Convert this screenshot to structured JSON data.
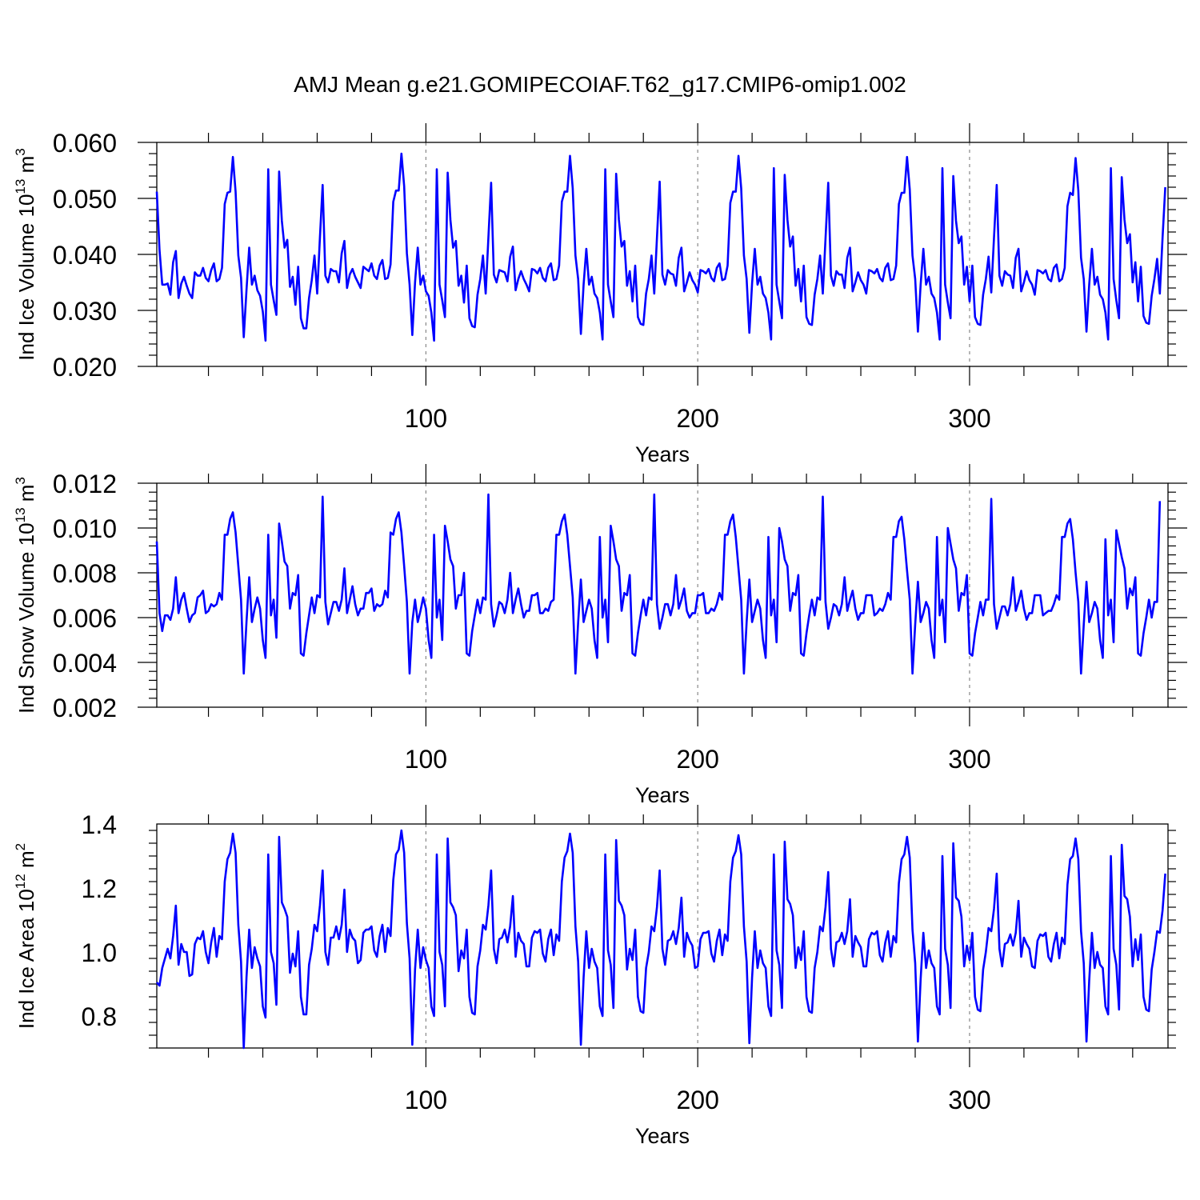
{
  "title": "AMJ Mean g.e21.GOMIPECOIAF.T62_g17.CMIP6-omip1.002",
  "colors": {
    "line": "#0000ff",
    "axis": "#000000",
    "refline": "#888888"
  },
  "chart_data": [
    {
      "type": "line",
      "ylabel_text": "Ind Ice Volume 10",
      "ylabel_exp": "13",
      "ylabel_unit": " m",
      "ylabel_unit_exp": "3",
      "xlabel": "Years",
      "xlim": [
        1,
        373
      ],
      "ylim": [
        0.02,
        0.06
      ],
      "xticks": [
        100,
        200,
        300
      ],
      "xtick_labels": [
        "100",
        "200",
        "300"
      ],
      "yticks": [
        0.02,
        0.03,
        0.04,
        0.05,
        0.06
      ],
      "ytick_labels": [
        "0.020",
        "0.030",
        "0.040",
        "0.050",
        "0.060"
      ],
      "ref_lines_x": [
        100,
        200,
        300
      ],
      "x_start": 1,
      "y": [
        0.0512,
        0.0408,
        0.0346,
        0.0346,
        0.0348,
        0.0328,
        0.0386,
        0.0406,
        0.0322,
        0.0348,
        0.036,
        0.0344,
        0.033,
        0.0322,
        0.0368,
        0.0362,
        0.0362,
        0.0376,
        0.0358,
        0.0352,
        0.0372,
        0.0384,
        0.0352,
        0.0356,
        0.0376,
        0.049,
        0.051,
        0.0512,
        0.0574,
        0.0512,
        0.0398,
        0.0358,
        0.0252,
        0.0336,
        0.0412,
        0.0346,
        0.0362,
        0.0336,
        0.0326,
        0.0298,
        0.0246,
        0.0552,
        0.0346,
        0.0318,
        0.0292,
        0.0548,
        0.046,
        0.0412,
        0.0426,
        0.0342,
        0.036,
        0.031,
        0.0378,
        0.0286,
        0.0268,
        0.0268,
        0.0322,
        0.0354,
        0.0398,
        0.033,
        0.043,
        0.0524,
        0.0362,
        0.035,
        0.0374,
        0.037,
        0.037,
        0.035,
        0.0402,
        0.0424,
        0.034,
        0.0364,
        0.0374,
        0.036,
        0.035,
        0.034,
        0.0378,
        0.0374,
        0.037,
        0.0384,
        0.0362,
        0.0356,
        0.038,
        0.039,
        0.0356,
        0.0358,
        0.0382,
        0.0494,
        0.0514,
        0.0514,
        0.058,
        0.0522,
        0.0402,
        0.0346,
        0.0256,
        0.035,
        0.0412,
        0.0346,
        0.0362,
        0.0334,
        0.0326,
        0.0296,
        0.0246,
        0.0552,
        0.0346,
        0.0318,
        0.0288,
        0.0546,
        0.0462,
        0.0412,
        0.0424,
        0.0344,
        0.0362,
        0.0314,
        0.038,
        0.0286,
        0.0272,
        0.027,
        0.0328,
        0.0356,
        0.0398,
        0.033,
        0.043,
        0.0528,
        0.0364,
        0.035,
        0.0372,
        0.037,
        0.0368,
        0.0352,
        0.0396,
        0.0414,
        0.0336,
        0.0356,
        0.037,
        0.0356,
        0.0346,
        0.0334,
        0.0374,
        0.0372,
        0.0366,
        0.0376,
        0.0358,
        0.0352,
        0.0376,
        0.0384,
        0.0354,
        0.0356,
        0.038,
        0.0494,
        0.0512,
        0.0512,
        0.0576,
        0.0518,
        0.0398,
        0.0356,
        0.0258,
        0.0346,
        0.041,
        0.0346,
        0.036,
        0.033,
        0.0322,
        0.0296,
        0.0248,
        0.0552,
        0.0346,
        0.0316,
        0.0288,
        0.0544,
        0.0462,
        0.0414,
        0.0424,
        0.0344,
        0.037,
        0.0316,
        0.038,
        0.0288,
        0.0276,
        0.0274,
        0.033,
        0.0356,
        0.0398,
        0.033,
        0.043,
        0.053,
        0.0364,
        0.0346,
        0.0372,
        0.0366,
        0.0364,
        0.0344,
        0.0394,
        0.0412,
        0.0334,
        0.035,
        0.0368,
        0.0354,
        0.0346,
        0.0332,
        0.0372,
        0.037,
        0.0366,
        0.0374,
        0.0358,
        0.0352,
        0.0376,
        0.0384,
        0.0354,
        0.0356,
        0.038,
        0.0492,
        0.0512,
        0.0512,
        0.0576,
        0.0518,
        0.0398,
        0.0356,
        0.026,
        0.0348,
        0.041,
        0.0346,
        0.036,
        0.033,
        0.0322,
        0.0296,
        0.0248,
        0.0554,
        0.0346,
        0.0316,
        0.0286,
        0.0542,
        0.0462,
        0.0414,
        0.0432,
        0.0344,
        0.0374,
        0.0316,
        0.038,
        0.0288,
        0.0276,
        0.0274,
        0.0328,
        0.0356,
        0.0398,
        0.033,
        0.0428,
        0.0528,
        0.0362,
        0.0344,
        0.037,
        0.0364,
        0.0364,
        0.034,
        0.0394,
        0.0412,
        0.0334,
        0.035,
        0.0368,
        0.0354,
        0.0346,
        0.033,
        0.0372,
        0.037,
        0.0366,
        0.0374,
        0.0358,
        0.0352,
        0.0376,
        0.0384,
        0.0354,
        0.0356,
        0.038,
        0.049,
        0.051,
        0.051,
        0.0574,
        0.0516,
        0.0398,
        0.0356,
        0.0262,
        0.0346,
        0.041,
        0.0346,
        0.036,
        0.033,
        0.0322,
        0.0296,
        0.0248,
        0.0554,
        0.0346,
        0.0314,
        0.0286,
        0.054,
        0.046,
        0.042,
        0.0432,
        0.0346,
        0.0378,
        0.0316,
        0.038,
        0.0288,
        0.0276,
        0.0274,
        0.0328,
        0.0356,
        0.0396,
        0.0332,
        0.043,
        0.0524,
        0.0362,
        0.0344,
        0.037,
        0.0364,
        0.0362,
        0.034,
        0.0394,
        0.041,
        0.0334,
        0.035,
        0.037,
        0.0354,
        0.0346,
        0.0328,
        0.0372,
        0.037,
        0.0366,
        0.0372,
        0.0356,
        0.0352,
        0.0376,
        0.0382,
        0.0352,
        0.0356,
        0.0376,
        0.0486,
        0.051,
        0.0506,
        0.0572,
        0.0514,
        0.0394,
        0.0356,
        0.0262,
        0.0346,
        0.041,
        0.0346,
        0.036,
        0.0328,
        0.032,
        0.0296,
        0.0248,
        0.0554,
        0.0356,
        0.0318,
        0.0286,
        0.0538,
        0.0462,
        0.042,
        0.0436,
        0.035,
        0.0386,
        0.0316,
        0.0378,
        0.029,
        0.0278,
        0.0276,
        0.0326,
        0.0356,
        0.0392,
        0.033,
        0.043,
        0.052
      ]
    },
    {
      "type": "line",
      "ylabel_text": "Ind Snow Volume 10",
      "ylabel_exp": "13",
      "ylabel_unit": " m",
      "ylabel_unit_exp": "3",
      "xlabel": "Years",
      "xlim": [
        1,
        373
      ],
      "ylim": [
        0.002,
        0.012
      ],
      "xticks": [
        100,
        200,
        300
      ],
      "xtick_labels": [
        "100",
        "200",
        "300"
      ],
      "yticks": [
        0.002,
        0.004,
        0.006,
        0.008,
        0.01,
        0.012
      ],
      "ytick_labels": [
        "0.002",
        "0.004",
        "0.006",
        "0.008",
        "0.010",
        "0.012"
      ],
      "ref_lines_x": [
        100,
        200,
        300
      ],
      "x_start": 1,
      "y": [
        0.0094,
        0.0062,
        0.0054,
        0.0061,
        0.0061,
        0.0059,
        0.0064,
        0.0078,
        0.0062,
        0.0068,
        0.0071,
        0.0064,
        0.0058,
        0.0061,
        0.0062,
        0.0069,
        0.007,
        0.0072,
        0.0062,
        0.0063,
        0.0066,
        0.0065,
        0.0066,
        0.0071,
        0.0068,
        0.0097,
        0.0097,
        0.0104,
        0.0107,
        0.0098,
        0.0083,
        0.0068,
        0.0035,
        0.0058,
        0.0078,
        0.0058,
        0.0064,
        0.0069,
        0.0064,
        0.005,
        0.0042,
        0.0097,
        0.0061,
        0.0068,
        0.0051,
        0.0102,
        0.0094,
        0.0085,
        0.0083,
        0.0064,
        0.0071,
        0.007,
        0.0079,
        0.0044,
        0.0043,
        0.0053,
        0.0061,
        0.0069,
        0.0062,
        0.007,
        0.0069,
        0.0114,
        0.0067,
        0.0057,
        0.0062,
        0.0067,
        0.0067,
        0.0063,
        0.0068,
        0.0082,
        0.0062,
        0.0068,
        0.0074,
        0.0066,
        0.0061,
        0.0064,
        0.0064,
        0.0071,
        0.0071,
        0.0073,
        0.0063,
        0.0066,
        0.0065,
        0.0066,
        0.0072,
        0.0069,
        0.0098,
        0.0097,
        0.0104,
        0.0107,
        0.0098,
        0.0083,
        0.0067,
        0.0035,
        0.0058,
        0.0068,
        0.0058,
        0.0063,
        0.0069,
        0.0064,
        0.005,
        0.0042,
        0.0097,
        0.006,
        0.0068,
        0.005,
        0.0101,
        0.0094,
        0.0086,
        0.0083,
        0.0064,
        0.007,
        0.007,
        0.008,
        0.0044,
        0.0043,
        0.0054,
        0.0061,
        0.0068,
        0.0062,
        0.0069,
        0.0068,
        0.0115,
        0.0066,
        0.0056,
        0.0061,
        0.0067,
        0.0066,
        0.0062,
        0.0068,
        0.008,
        0.0062,
        0.0068,
        0.0073,
        0.0066,
        0.006,
        0.0063,
        0.0063,
        0.007,
        0.007,
        0.0071,
        0.0062,
        0.0062,
        0.0064,
        0.0063,
        0.0067,
        0.0068,
        0.0097,
        0.0097,
        0.0103,
        0.0106,
        0.0097,
        0.0083,
        0.0069,
        0.0035,
        0.0058,
        0.0077,
        0.0058,
        0.0063,
        0.0068,
        0.0064,
        0.005,
        0.0042,
        0.0096,
        0.006,
        0.0068,
        0.0049,
        0.0101,
        0.0094,
        0.0086,
        0.0083,
        0.0063,
        0.0071,
        0.007,
        0.0079,
        0.0044,
        0.0043,
        0.0053,
        0.0061,
        0.0068,
        0.0061,
        0.0069,
        0.0068,
        0.0115,
        0.0066,
        0.0055,
        0.006,
        0.0066,
        0.0066,
        0.0061,
        0.0066,
        0.0079,
        0.0064,
        0.0068,
        0.0073,
        0.0063,
        0.006,
        0.0062,
        0.0062,
        0.007,
        0.007,
        0.0071,
        0.0062,
        0.0062,
        0.0064,
        0.0063,
        0.0066,
        0.0071,
        0.0068,
        0.0097,
        0.0097,
        0.0103,
        0.0106,
        0.0096,
        0.0082,
        0.0068,
        0.0035,
        0.0058,
        0.0077,
        0.0058,
        0.0063,
        0.0068,
        0.0064,
        0.005,
        0.0042,
        0.0096,
        0.0061,
        0.0068,
        0.0049,
        0.01,
        0.0094,
        0.0086,
        0.0083,
        0.0063,
        0.0071,
        0.007,
        0.0079,
        0.0044,
        0.0043,
        0.0053,
        0.0061,
        0.0068,
        0.0061,
        0.0069,
        0.0068,
        0.0114,
        0.0067,
        0.0055,
        0.006,
        0.0066,
        0.0065,
        0.0061,
        0.0066,
        0.0078,
        0.0063,
        0.0068,
        0.0072,
        0.0064,
        0.0059,
        0.0062,
        0.0062,
        0.007,
        0.007,
        0.007,
        0.0061,
        0.0062,
        0.0064,
        0.0063,
        0.0066,
        0.0071,
        0.0068,
        0.0096,
        0.0096,
        0.0103,
        0.0105,
        0.0095,
        0.0081,
        0.0068,
        0.0035,
        0.0057,
        0.0076,
        0.0058,
        0.0062,
        0.0067,
        0.0064,
        0.005,
        0.0042,
        0.0096,
        0.0061,
        0.0068,
        0.0049,
        0.01,
        0.0093,
        0.0086,
        0.0082,
        0.0063,
        0.0071,
        0.007,
        0.0079,
        0.0044,
        0.0043,
        0.0053,
        0.006,
        0.0067,
        0.0061,
        0.0068,
        0.0068,
        0.0113,
        0.0066,
        0.0055,
        0.006,
        0.0065,
        0.0065,
        0.0061,
        0.0066,
        0.0078,
        0.0063,
        0.0067,
        0.0072,
        0.0064,
        0.0059,
        0.0062,
        0.0062,
        0.007,
        0.007,
        0.007,
        0.0061,
        0.0062,
        0.0063,
        0.0063,
        0.0066,
        0.007,
        0.0068,
        0.0096,
        0.0096,
        0.0102,
        0.0104,
        0.0095,
        0.008,
        0.0067,
        0.0035,
        0.0057,
        0.0076,
        0.0058,
        0.0062,
        0.0067,
        0.0064,
        0.005,
        0.0042,
        0.0095,
        0.0061,
        0.0068,
        0.0049,
        0.0099,
        0.0093,
        0.0087,
        0.0082,
        0.0064,
        0.0073,
        0.007,
        0.0078,
        0.0044,
        0.0043,
        0.0053,
        0.006,
        0.0068,
        0.006,
        0.0067,
        0.0067,
        0.0112
      ]
    },
    {
      "type": "line",
      "ylabel_text": "Ind Ice Area 10",
      "ylabel_exp": "12",
      "ylabel_unit": " m",
      "ylabel_unit_exp": "2",
      "xlabel": "Years",
      "xlim": [
        1,
        373
      ],
      "ylim": [
        0.7,
        1.4
      ],
      "xticks": [
        100,
        200,
        300
      ],
      "xtick_labels": [
        "100",
        "200",
        "300"
      ],
      "yticks": [
        0.8,
        1.0,
        1.2,
        1.4
      ],
      "ytick_labels": [
        "0.8",
        "1.0",
        "1.2",
        "1.4"
      ],
      "ref_lines_x": [
        100,
        200,
        300
      ],
      "x_start": 1,
      "y": [
        0.905,
        0.895,
        0.95,
        0.98,
        1.01,
        0.98,
        1.05,
        1.145,
        0.96,
        1.025,
        1.0,
        1.0,
        0.925,
        0.93,
        1.025,
        1.045,
        1.04,
        1.065,
        1.0,
        0.965,
        1.03,
        1.075,
        0.985,
        1.05,
        1.04,
        1.22,
        1.29,
        1.31,
        1.37,
        1.31,
        1.085,
        0.97,
        0.7,
        0.92,
        1.07,
        0.95,
        1.015,
        0.98,
        0.955,
        0.83,
        0.795,
        1.305,
        1.0,
        0.965,
        0.835,
        1.36,
        1.155,
        1.135,
        1.11,
        0.935,
        0.995,
        0.955,
        1.065,
        0.86,
        0.805,
        0.805,
        0.96,
        1.01,
        1.085,
        1.065,
        1.145,
        1.255,
        1.0,
        0.96,
        1.045,
        1.045,
        1.08,
        1.04,
        1.085,
        1.195,
        1.0,
        1.07,
        1.045,
        1.035,
        0.965,
        0.975,
        1.06,
        1.07,
        1.07,
        1.08,
        1.005,
        0.985,
        1.05,
        1.085,
        1.0,
        1.075,
        1.05,
        1.225,
        1.305,
        1.32,
        1.38,
        1.31,
        1.09,
        0.98,
        0.71,
        0.945,
        1.07,
        0.95,
        1.015,
        0.975,
        0.95,
        0.83,
        0.8,
        1.305,
        1.0,
        0.96,
        0.83,
        1.355,
        1.155,
        1.14,
        1.115,
        0.94,
        1.005,
        0.98,
        1.07,
        0.86,
        0.81,
        0.805,
        0.955,
        1.005,
        1.085,
        1.07,
        1.145,
        1.255,
        1.01,
        0.965,
        1.04,
        1.045,
        1.07,
        1.03,
        1.08,
        1.175,
        0.985,
        1.06,
        1.035,
        1.025,
        0.955,
        0.955,
        1.045,
        1.065,
        1.06,
        1.07,
        0.995,
        0.97,
        1.04,
        1.07,
        0.99,
        1.055,
        1.035,
        1.22,
        1.295,
        1.315,
        1.37,
        1.31,
        1.08,
        0.97,
        0.71,
        0.92,
        1.065,
        0.95,
        1.01,
        0.97,
        0.95,
        0.83,
        0.8,
        1.305,
        1.005,
        0.96,
        0.825,
        1.35,
        1.16,
        1.145,
        1.115,
        0.945,
        1.01,
        0.975,
        1.07,
        0.86,
        0.815,
        0.81,
        0.95,
        1.0,
        1.08,
        1.065,
        1.14,
        1.255,
        1.01,
        0.96,
        1.035,
        1.04,
        1.065,
        1.025,
        1.075,
        1.17,
        0.985,
        1.06,
        1.035,
        1.02,
        0.95,
        0.955,
        1.04,
        1.06,
        1.06,
        1.065,
        0.995,
        0.97,
        1.035,
        1.07,
        0.99,
        1.055,
        1.035,
        1.22,
        1.295,
        1.315,
        1.365,
        1.305,
        1.08,
        0.97,
        0.715,
        0.92,
        1.065,
        0.95,
        1.005,
        0.965,
        0.95,
        0.83,
        0.8,
        1.305,
        1.005,
        0.96,
        0.825,
        1.345,
        1.165,
        1.15,
        1.115,
        0.95,
        1.015,
        0.975,
        1.065,
        0.86,
        0.815,
        0.81,
        0.95,
        1.0,
        1.08,
        1.065,
        1.14,
        1.25,
        1.01,
        0.955,
        1.03,
        1.035,
        1.06,
        1.025,
        1.065,
        1.165,
        0.985,
        1.05,
        1.03,
        1.015,
        0.955,
        0.955,
        1.04,
        1.06,
        1.055,
        1.065,
        0.99,
        0.97,
        1.03,
        1.065,
        0.985,
        1.05,
        1.03,
        1.215,
        1.29,
        1.305,
        1.36,
        1.295,
        1.07,
        0.965,
        0.72,
        0.915,
        1.06,
        0.95,
        1.005,
        0.965,
        0.95,
        0.83,
        0.805,
        1.3,
        1.01,
        0.96,
        0.825,
        1.34,
        1.17,
        1.16,
        1.11,
        0.955,
        1.02,
        0.975,
        1.06,
        0.86,
        0.82,
        0.815,
        0.945,
        1.0,
        1.075,
        1.065,
        1.135,
        1.245,
        1.01,
        0.955,
        1.025,
        1.03,
        1.055,
        1.02,
        1.06,
        1.16,
        0.985,
        1.045,
        1.025,
        1.01,
        0.955,
        0.95,
        1.035,
        1.055,
        1.05,
        1.06,
        0.985,
        0.97,
        1.025,
        1.06,
        0.98,
        1.045,
        1.025,
        1.21,
        1.29,
        1.3,
        1.355,
        1.29,
        1.065,
        0.965,
        0.72,
        0.91,
        1.06,
        0.95,
        1.0,
        0.96,
        0.95,
        0.83,
        0.805,
        1.3,
        1.01,
        0.96,
        0.82,
        1.335,
        1.175,
        1.165,
        1.11,
        0.955,
        1.04,
        0.975,
        1.055,
        0.86,
        0.82,
        0.815,
        0.945,
        1.0,
        1.065,
        1.06,
        1.13,
        1.245
      ]
    }
  ]
}
